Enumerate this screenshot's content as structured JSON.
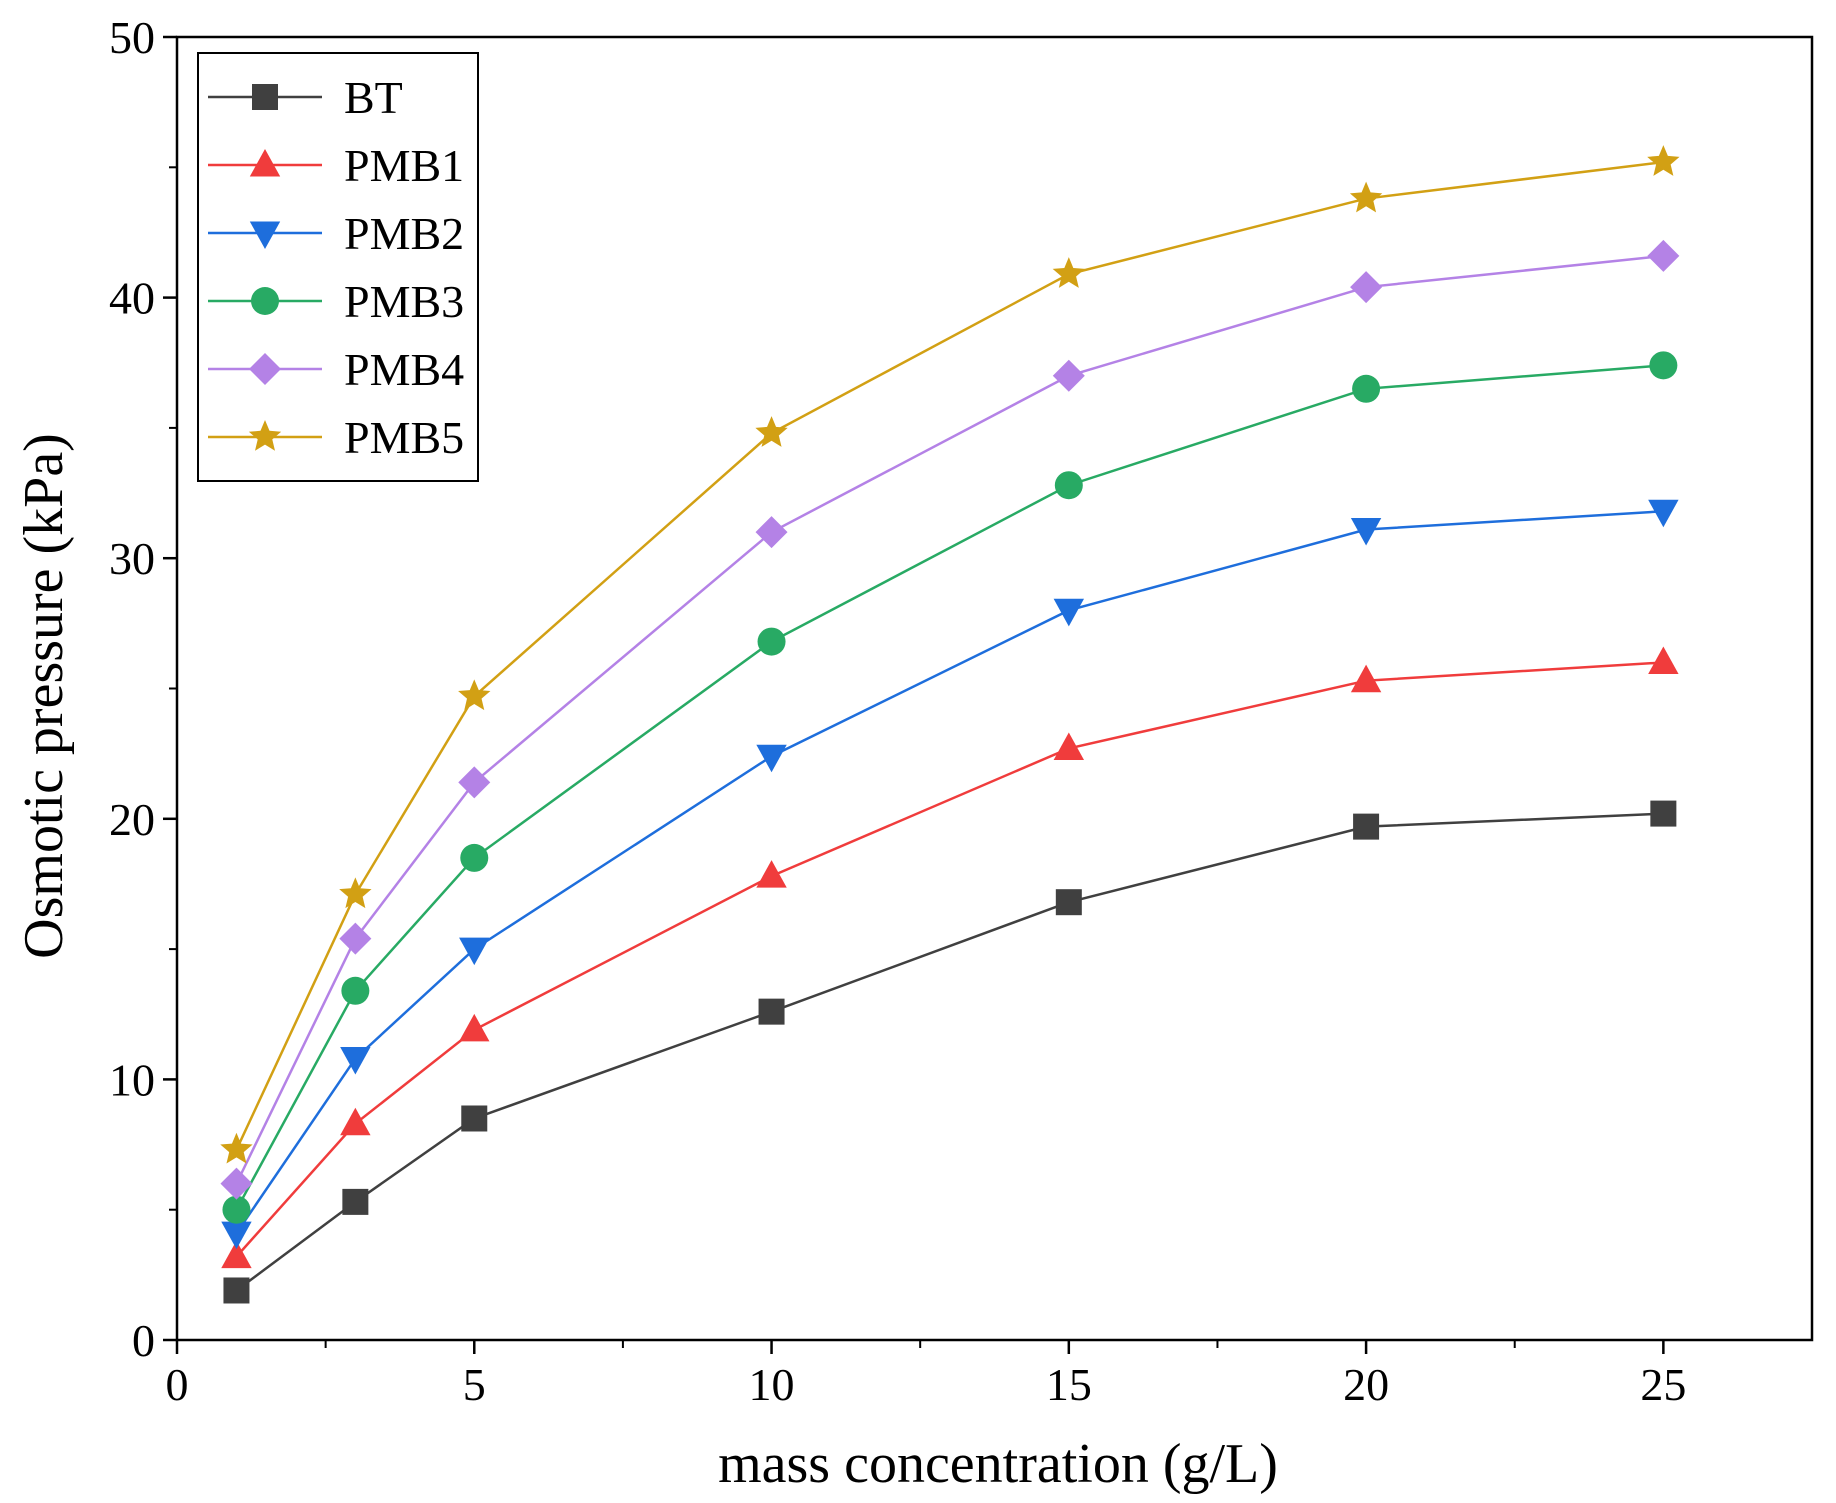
{
  "chart_data": {
    "type": "line",
    "title": "",
    "xlabel": "mass concentration (g/L)",
    "ylabel": "Osmotic pressure (kPa)",
    "xlim": [
      0,
      27.5
    ],
    "ylim": [
      0,
      50
    ],
    "xticks": [
      0,
      5,
      10,
      15,
      20,
      25
    ],
    "yticks": [
      0,
      10,
      20,
      30,
      40,
      50
    ],
    "x_minor_ticks": [
      2.5,
      7.5,
      12.5,
      17.5,
      22.5
    ],
    "y_minor_ticks": [
      5,
      15,
      25,
      35,
      45
    ],
    "grid": false,
    "legend_position": "top-left",
    "x": [
      1,
      3,
      5,
      10,
      15,
      20,
      25
    ],
    "series": [
      {
        "name": "BT",
        "color": "#404040",
        "marker": "square",
        "values": [
          1.9,
          5.3,
          8.5,
          12.6,
          16.8,
          19.7,
          20.2
        ]
      },
      {
        "name": "PMB1",
        "color": "#f03c3c",
        "marker": "triangle-up",
        "values": [
          3.2,
          8.3,
          11.9,
          17.8,
          22.7,
          25.3,
          26.0
        ]
      },
      {
        "name": "PMB2",
        "color": "#1e6edc",
        "marker": "triangle-down",
        "values": [
          4.1,
          10.8,
          15.0,
          22.4,
          28.0,
          31.1,
          31.8
        ]
      },
      {
        "name": "PMB3",
        "color": "#28aa64",
        "marker": "circle",
        "values": [
          5.0,
          13.4,
          18.5,
          26.8,
          32.8,
          36.5,
          37.4
        ]
      },
      {
        "name": "PMB4",
        "color": "#b482e6",
        "marker": "diamond",
        "values": [
          6.0,
          15.4,
          21.4,
          31.0,
          37.0,
          40.4,
          41.6
        ]
      },
      {
        "name": "PMB5",
        "color": "#d2a014",
        "marker": "star",
        "values": [
          7.3,
          17.1,
          24.7,
          34.8,
          40.9,
          43.8,
          45.2
        ]
      }
    ]
  }
}
